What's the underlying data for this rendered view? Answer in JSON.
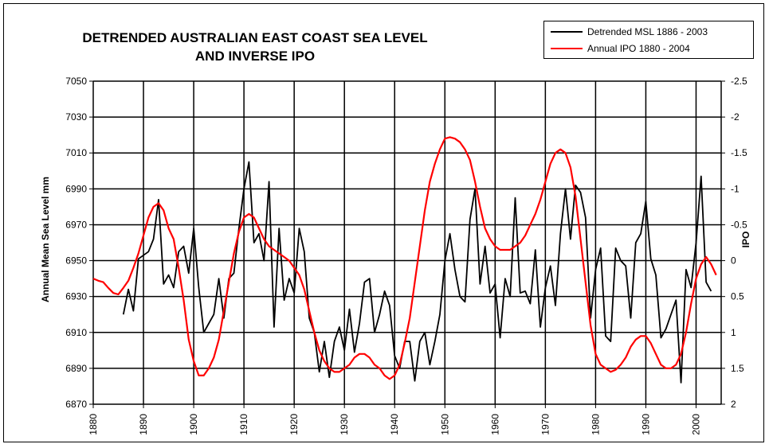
{
  "chart_data": {
    "type": "line",
    "title": [
      "DETRENDED AUSTRALIAN EAST COAST SEA LEVEL",
      "AND INVERSE IPO"
    ],
    "ylabel": "Annual Mean Sea Level  mm",
    "y2label": "IPO",
    "xlim": [
      1880,
      2005
    ],
    "ylim": [
      6870,
      7050
    ],
    "y2lim": [
      2,
      -2.5
    ],
    "y2_inverted": true,
    "x_ticks": [
      1880,
      1890,
      1900,
      1910,
      1920,
      1930,
      1940,
      1950,
      1960,
      1970,
      1980,
      1990,
      2000
    ],
    "y_ticks": [
      6870,
      6890,
      6910,
      6930,
      6950,
      6970,
      6990,
      7010,
      7030,
      7050
    ],
    "y2_ticks": [
      2,
      1.5,
      1,
      0.5,
      0,
      -0.5,
      -1,
      -1.5,
      -2,
      -2.5
    ],
    "grid": true,
    "legend_position": "top-right",
    "series": [
      {
        "name": "Detrended  MSL 1886 - 2003",
        "color": "#000000",
        "axis": "left",
        "x": [
          1886,
          1887,
          1888,
          1889,
          1890,
          1891,
          1892,
          1893,
          1894,
          1895,
          1896,
          1897,
          1898,
          1899,
          1900,
          1901,
          1902,
          1903,
          1904,
          1905,
          1906,
          1907,
          1908,
          1909,
          1910,
          1911,
          1912,
          1913,
          1914,
          1915,
          1916,
          1917,
          1918,
          1919,
          1920,
          1921,
          1922,
          1923,
          1924,
          1925,
          1926,
          1927,
          1928,
          1929,
          1930,
          1931,
          1932,
          1933,
          1934,
          1935,
          1936,
          1937,
          1938,
          1939,
          1940,
          1941,
          1942,
          1943,
          1944,
          1945,
          1946,
          1947,
          1948,
          1949,
          1950,
          1951,
          1952,
          1953,
          1954,
          1955,
          1956,
          1957,
          1958,
          1959,
          1960,
          1961,
          1962,
          1963,
          1964,
          1965,
          1966,
          1967,
          1968,
          1969,
          1970,
          1971,
          1972,
          1973,
          1974,
          1975,
          1976,
          1977,
          1978,
          1979,
          1980,
          1981,
          1982,
          1983,
          1984,
          1985,
          1986,
          1987,
          1988,
          1989,
          1990,
          1991,
          1992,
          1993,
          1994,
          1995,
          1996,
          1997,
          1998,
          1999,
          2000,
          2001,
          2002,
          2003
        ],
        "values": [
          6920,
          6934,
          6922,
          6951,
          6953,
          6955,
          6962,
          6984,
          6937,
          6942,
          6935,
          6955,
          6958,
          6943,
          6968,
          6935,
          6910,
          6915,
          6920,
          6940,
          6918,
          6940,
          6943,
          6968,
          6990,
          7005,
          6960,
          6965,
          6950,
          6994,
          6913,
          6968,
          6928,
          6940,
          6932,
          6968,
          6955,
          6918,
          6910,
          6888,
          6905,
          6885,
          6905,
          6913,
          6900,
          6923,
          6899,
          6915,
          6938,
          6940,
          6910,
          6920,
          6933,
          6925,
          6897,
          6890,
          6905,
          6905,
          6883,
          6905,
          6910,
          6892,
          6905,
          6920,
          6950,
          6965,
          6945,
          6930,
          6927,
          6973,
          6990,
          6937,
          6958,
          6932,
          6937,
          6907,
          6940,
          6930,
          6985,
          6932,
          6933,
          6926,
          6956,
          6913,
          6935,
          6947,
          6925,
          6965,
          6990,
          6962,
          6992,
          6988,
          6974,
          6918,
          6945,
          6957,
          6908,
          6905,
          6957,
          6950,
          6947,
          6918,
          6960,
          6965,
          6983,
          6951,
          6942,
          6907,
          6912,
          6920,
          6928,
          6882,
          6945,
          6935,
          6960,
          6997,
          6938,
          6933
        ]
      },
      {
        "name": "Annual IPO 1880 - 2004",
        "color": "#ff0000",
        "axis": "right",
        "x": [
          1880,
          1881,
          1882,
          1883,
          1884,
          1885,
          1886,
          1887,
          1888,
          1889,
          1890,
          1891,
          1892,
          1893,
          1894,
          1895,
          1896,
          1897,
          1898,
          1899,
          1900,
          1901,
          1902,
          1903,
          1904,
          1905,
          1906,
          1907,
          1908,
          1909,
          1910,
          1911,
          1912,
          1913,
          1914,
          1915,
          1916,
          1917,
          1918,
          1919,
          1920,
          1921,
          1922,
          1923,
          1924,
          1925,
          1926,
          1927,
          1928,
          1929,
          1930,
          1931,
          1932,
          1933,
          1934,
          1935,
          1936,
          1937,
          1938,
          1939,
          1940,
          1941,
          1942,
          1943,
          1944,
          1945,
          1946,
          1947,
          1948,
          1949,
          1950,
          1951,
          1952,
          1953,
          1954,
          1955,
          1956,
          1957,
          1958,
          1959,
          1960,
          1961,
          1962,
          1963,
          1964,
          1965,
          1966,
          1967,
          1968,
          1969,
          1970,
          1971,
          1972,
          1973,
          1974,
          1975,
          1976,
          1977,
          1978,
          1979,
          1980,
          1981,
          1982,
          1983,
          1984,
          1985,
          1986,
          1987,
          1988,
          1989,
          1990,
          1991,
          1992,
          1993,
          1994,
          1995,
          1996,
          1997,
          1998,
          1999,
          2000,
          2001,
          2002,
          2003,
          2004
        ],
        "values": [
          0.25,
          0.28,
          0.3,
          0.38,
          0.45,
          0.47,
          0.38,
          0.28,
          0.1,
          -0.1,
          -0.35,
          -0.6,
          -0.75,
          -0.8,
          -0.7,
          -0.45,
          -0.3,
          0.1,
          0.55,
          1.1,
          1.4,
          1.6,
          1.6,
          1.5,
          1.35,
          1.1,
          0.7,
          0.3,
          -0.1,
          -0.4,
          -0.6,
          -0.65,
          -0.6,
          -0.45,
          -0.3,
          -0.2,
          -0.15,
          -0.1,
          -0.05,
          0,
          0.1,
          0.2,
          0.4,
          0.7,
          1.0,
          1.25,
          1.4,
          1.5,
          1.55,
          1.55,
          1.5,
          1.45,
          1.35,
          1.3,
          1.3,
          1.35,
          1.45,
          1.5,
          1.6,
          1.65,
          1.6,
          1.45,
          1.15,
          0.8,
          0.3,
          -0.2,
          -0.7,
          -1.1,
          -1.35,
          -1.55,
          -1.7,
          -1.72,
          -1.7,
          -1.65,
          -1.55,
          -1.4,
          -1.1,
          -0.75,
          -0.45,
          -0.3,
          -0.2,
          -0.15,
          -0.15,
          -0.15,
          -0.2,
          -0.25,
          -0.35,
          -0.5,
          -0.65,
          -0.85,
          -1.1,
          -1.35,
          -1.5,
          -1.55,
          -1.5,
          -1.3,
          -0.9,
          -0.3,
          0.3,
          0.9,
          1.3,
          1.45,
          1.5,
          1.55,
          1.52,
          1.45,
          1.35,
          1.2,
          1.1,
          1.05,
          1.05,
          1.15,
          1.3,
          1.45,
          1.5,
          1.5,
          1.45,
          1.3,
          1.0,
          0.6,
          0.25,
          0.05,
          -0.05,
          0.05,
          0.2
        ]
      }
    ]
  }
}
